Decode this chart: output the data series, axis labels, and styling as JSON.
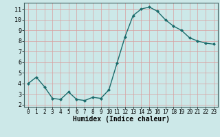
{
  "x": [
    0,
    1,
    2,
    3,
    4,
    5,
    6,
    7,
    8,
    9,
    10,
    11,
    12,
    13,
    14,
    15,
    16,
    17,
    18,
    19,
    20,
    21,
    22,
    23
  ],
  "y": [
    4.0,
    4.6,
    3.7,
    2.6,
    2.5,
    3.2,
    2.5,
    2.4,
    2.7,
    2.6,
    3.4,
    5.9,
    8.4,
    10.4,
    11.0,
    11.2,
    10.8,
    10.0,
    9.4,
    9.0,
    8.3,
    8.0,
    7.8,
    7.7
  ],
  "line_color": "#1a6b6b",
  "marker": "D",
  "marker_size": 2.0,
  "line_width": 1.0,
  "xlabel": "Humidex (Indice chaleur)",
  "xlabel_fontsize": 7,
  "xlim": [
    -0.5,
    23.5
  ],
  "ylim": [
    1.8,
    11.6
  ],
  "yticks": [
    2,
    3,
    4,
    5,
    6,
    7,
    8,
    9,
    10,
    11
  ],
  "xticks": [
    0,
    1,
    2,
    3,
    4,
    5,
    6,
    7,
    8,
    9,
    10,
    11,
    12,
    13,
    14,
    15,
    16,
    17,
    18,
    19,
    20,
    21,
    22,
    23
  ],
  "xtick_labels": [
    "0",
    "1",
    "2",
    "3",
    "4",
    "5",
    "6",
    "7",
    "8",
    "9",
    "10",
    "11",
    "12",
    "13",
    "14",
    "15",
    "16",
    "17",
    "18",
    "19",
    "20",
    "21",
    "22",
    "23"
  ],
  "bg_color": "#cce8e8",
  "grid_color_minor": "#d8a0a0",
  "grid_color_major": "#d8a0a0",
  "tick_fontsize": 5.5,
  "ytick_fontsize": 6
}
